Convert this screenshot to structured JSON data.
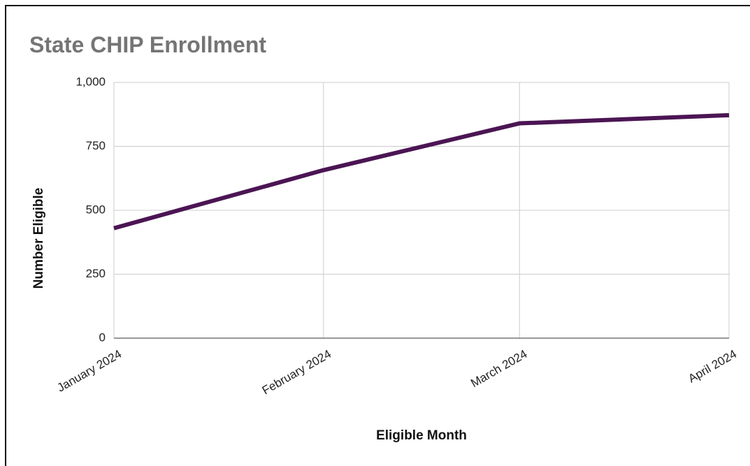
{
  "chart_data": {
    "type": "line",
    "title": "State CHIP Enrollment",
    "x_label": "Eligible Month",
    "y_label": "Number Eligible",
    "categories": [
      "January 2024",
      "February 2024",
      "March 2024",
      "April 2024"
    ],
    "series": [
      {
        "name": "Number Eligible",
        "color": "#4b1553",
        "values": [
          430,
          657,
          840,
          872
        ]
      }
    ],
    "ylim": [
      0,
      1000
    ],
    "yticks": [
      0,
      250,
      500,
      750,
      {
        "value": 1000,
        "label": "1,000"
      }
    ],
    "grid": true
  }
}
